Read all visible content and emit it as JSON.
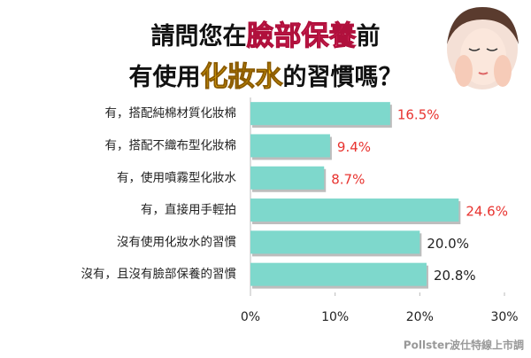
{
  "chart_data": {
    "type": "hbar",
    "title": [
      [
        "請問您在",
        "臉部保養",
        "前"
      ],
      [
        "有使用",
        "化妝水",
        "的習慣嗎？"
      ]
    ],
    "categories": [
      "有，搭配純棉材質化妝棉",
      "有，搭配不織布型化妝棉",
      "有，使用噴霧型化妝水",
      "有，直接用手輕拍",
      "沒有使用化妝水的習慣",
      "沒有，且沒有臉部保養的習慣"
    ],
    "values": [
      16.5,
      9.4,
      8.7,
      24.6,
      20.0,
      20.8
    ],
    "value_labels": [
      "16.5%",
      "9.4%",
      "8.7%",
      "24.6%",
      "20.0%",
      "20.8%"
    ],
    "value_label_colors": [
      "#e8332f",
      "#e8332f",
      "#e8332f",
      "#e8332f",
      "#222222",
      "#222222"
    ],
    "color": "#7ed8cc",
    "xlim": [
      0,
      30
    ],
    "xticks": [
      {
        "value": 0,
        "label": "0%"
      },
      {
        "value": 10,
        "label": "10%"
      },
      {
        "value": 20,
        "label": "20%"
      },
      {
        "value": 30,
        "label": "30%"
      }
    ],
    "source": "Pollster波仕特線上市調"
  }
}
